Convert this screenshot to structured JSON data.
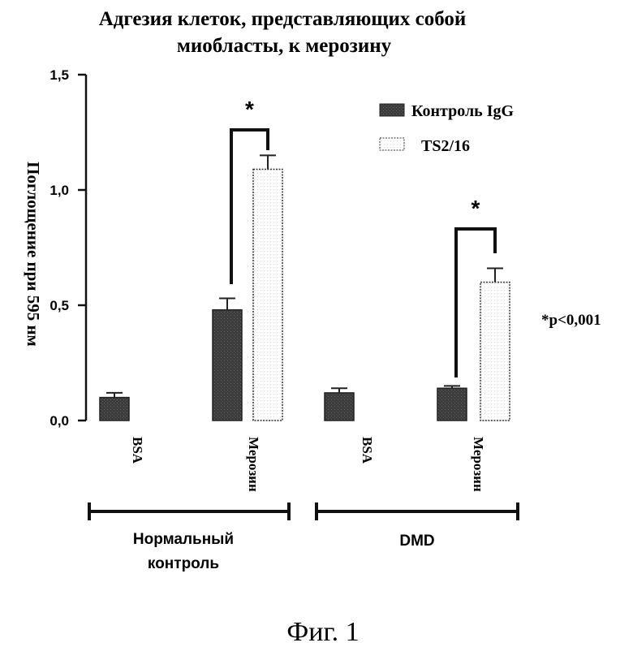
{
  "chart_data": {
    "type": "bar",
    "title": [
      "Адгезия клеток, представляющих собой",
      "миобласты, к мерозину"
    ],
    "ylabel": "Поглощение при 595 нм",
    "ylim": [
      0,
      1.5
    ],
    "yticks": [
      "0,0",
      "0,5",
      "1,0",
      "1,5"
    ],
    "ytick_values": [
      0,
      0.5,
      1.0,
      1.5
    ],
    "groups": [
      {
        "label": [
          "Нормальный",
          "контроль"
        ],
        "categories": [
          "BSA",
          "Мерозин"
        ]
      },
      {
        "label": [
          "DMD"
        ],
        "categories": [
          "BSA",
          "Мерозин"
        ]
      }
    ],
    "series": [
      {
        "name": "Контроль IgG",
        "fill": "dark",
        "values": [
          0.1,
          0.48,
          0.12,
          0.14
        ],
        "errors": [
          0.02,
          0.05,
          0.02,
          0.01
        ]
      },
      {
        "name": "TS2/16",
        "fill": "light",
        "values": [
          null,
          1.09,
          null,
          0.6
        ],
        "errors": [
          null,
          0.06,
          null,
          0.06
        ]
      }
    ],
    "significance": [
      {
        "category_index": 1,
        "label": "*"
      },
      {
        "category_index": 3,
        "label": "*"
      }
    ],
    "p_note": "*p<0,001",
    "legend_position": "top-right",
    "grid": false
  },
  "figure_caption": "Фиг. 1",
  "colors": {
    "dark_bar": "#3a3a3a",
    "light_bar": "#ffffff",
    "ink": "#111111"
  }
}
